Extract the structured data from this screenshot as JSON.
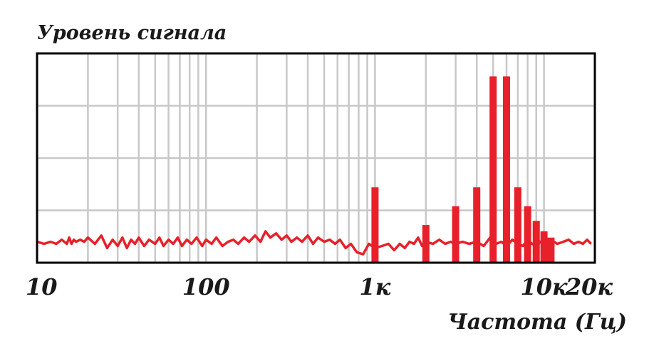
{
  "chart_data": {
    "type": "bar",
    "title": "Уровень сигнала",
    "xlabel": "Частота (Гц)",
    "ylabel": "",
    "x_scale": "log",
    "xlim": [
      10,
      20000
    ],
    "ylim": [
      0,
      1
    ],
    "grid": true,
    "x_tick_labels": [
      {
        "value": 10,
        "label": "10"
      },
      {
        "value": 100,
        "label": "100"
      },
      {
        "value": 1000,
        "label": "1к"
      },
      {
        "value": 10000,
        "label": "10к"
      },
      {
        "value": 20000,
        "label": "20к"
      }
    ],
    "y_grid_lines": [
      0.25,
      0.5,
      0.75
    ],
    "series": [
      {
        "kind": "bars",
        "color": "#e8202a",
        "x": [
          1000,
          2000,
          3000,
          4000,
          5000,
          6000,
          7000,
          8000,
          9000,
          10000,
          11000
        ],
        "values": [
          0.36,
          0.18,
          0.27,
          0.36,
          0.89,
          0.89,
          0.36,
          0.27,
          0.2,
          0.15,
          0.12
        ]
      },
      {
        "kind": "line",
        "color": "#e8202a",
        "x": [
          10,
          11,
          12,
          13,
          14,
          15,
          15.5,
          16,
          16.5,
          17,
          18,
          19,
          20,
          22,
          24,
          26,
          28,
          30,
          32,
          34,
          36,
          38,
          40,
          43,
          46,
          50,
          53,
          56,
          60,
          64,
          68,
          72,
          77,
          82,
          88,
          95,
          100,
          108,
          115,
          125,
          135,
          145,
          155,
          168,
          180,
          195,
          210,
          225,
          240,
          260,
          280,
          300,
          320,
          345,
          370,
          400,
          430,
          460,
          500,
          540,
          580,
          620,
          670,
          720,
          780,
          850,
          920,
          1000,
          1100,
          1200,
          1300,
          1400,
          1500,
          1600,
          1700,
          1800,
          1900,
          2000,
          2200,
          2400,
          2600,
          2800,
          3000,
          3300,
          3600,
          4000,
          4400,
          4800,
          5200,
          5600,
          6000,
          6500,
          7000,
          7500,
          8000,
          8500,
          9000,
          9500,
          10000,
          11000,
          12000,
          13000,
          14000,
          15000,
          16000,
          17000,
          18000,
          19000
        ],
        "values": [
          0.1,
          0.09,
          0.1,
          0.09,
          0.11,
          0.09,
          0.12,
          0.09,
          0.11,
          0.1,
          0.11,
          0.1,
          0.12,
          0.09,
          0.13,
          0.07,
          0.11,
          0.08,
          0.12,
          0.07,
          0.11,
          0.09,
          0.12,
          0.08,
          0.11,
          0.09,
          0.12,
          0.08,
          0.11,
          0.09,
          0.12,
          0.08,
          0.11,
          0.09,
          0.12,
          0.08,
          0.11,
          0.09,
          0.12,
          0.08,
          0.1,
          0.11,
          0.09,
          0.12,
          0.1,
          0.13,
          0.1,
          0.15,
          0.12,
          0.14,
          0.11,
          0.13,
          0.1,
          0.12,
          0.1,
          0.13,
          0.09,
          0.12,
          0.1,
          0.11,
          0.09,
          0.11,
          0.07,
          0.09,
          0.05,
          0.04,
          0.09,
          0.07,
          0.08,
          0.09,
          0.06,
          0.09,
          0.07,
          0.1,
          0.09,
          0.12,
          0.08,
          0.1,
          0.09,
          0.11,
          0.09,
          0.1,
          0.09,
          0.1,
          0.09,
          0.1,
          0.08,
          0.12,
          0.09,
          0.1,
          0.08,
          0.11,
          0.09,
          0.08,
          0.11,
          0.09,
          0.08,
          0.1,
          0.09,
          0.11,
          0.09,
          0.1,
          0.11,
          0.09,
          0.1,
          0.09,
          0.11,
          0.09
        ]
      }
    ]
  }
}
